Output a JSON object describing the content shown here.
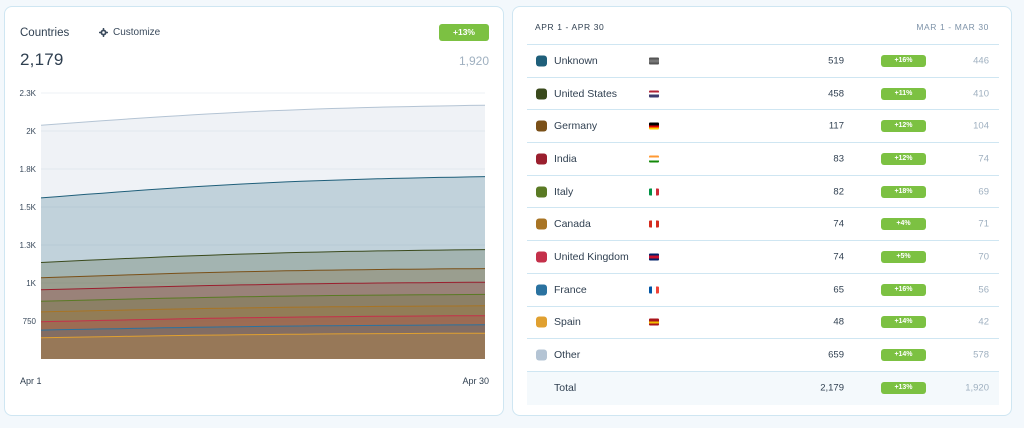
{
  "left_panel": {
    "title": "Countries",
    "customize_label": "Customize",
    "change_badge": "+13%",
    "current_total": "2,179",
    "previous_total": "1,920",
    "x_start_label": "Apr 1",
    "x_end_label": "Apr 30"
  },
  "right_panel": {
    "current_range": "APR 1 - APR 30",
    "previous_range": "MAR 1 - MAR 30"
  },
  "rows": [
    {
      "name": "Unknown",
      "value": "519",
      "change": "+16%",
      "previous": "446",
      "color": "#1f5f7a",
      "flag": "unknown"
    },
    {
      "name": "United States",
      "value": "458",
      "change": "+11%",
      "previous": "410",
      "color": "#3a4a1c",
      "flag": "us"
    },
    {
      "name": "Germany",
      "value": "117",
      "change": "+12%",
      "previous": "104",
      "color": "#7a5018",
      "flag": "de"
    },
    {
      "name": "India",
      "value": "83",
      "change": "+12%",
      "previous": "74",
      "color": "#9a1f2e",
      "flag": "in"
    },
    {
      "name": "Italy",
      "value": "82",
      "change": "+18%",
      "previous": "69",
      "color": "#5a7a24",
      "flag": "it"
    },
    {
      "name": "Canada",
      "value": "74",
      "change": "+4%",
      "previous": "71",
      "color": "#a87424",
      "flag": "ca"
    },
    {
      "name": "United Kingdom",
      "value": "74",
      "change": "+5%",
      "previous": "70",
      "color": "#c4304a",
      "flag": "gb"
    },
    {
      "name": "France",
      "value": "65",
      "change": "+16%",
      "previous": "56",
      "color": "#2a72a0",
      "flag": "fr"
    },
    {
      "name": "Spain",
      "value": "48",
      "change": "+14%",
      "previous": "42",
      "color": "#e0a030",
      "flag": "es"
    },
    {
      "name": "Other",
      "value": "659",
      "change": "+14%",
      "previous": "578",
      "color": "#b4c4d4",
      "flag": ""
    }
  ],
  "total_row": {
    "name": "Total",
    "value": "2,179",
    "change": "+13%",
    "previous": "1,920"
  },
  "chart_data": {
    "type": "area",
    "stacked": true,
    "y_ticks": [
      "750",
      "1K",
      "1.3K",
      "1.5K",
      "1.8K",
      "2K",
      "2.3K"
    ],
    "y_tick_values": [
      750,
      1000,
      1250,
      1500,
      1750,
      2000,
      2250
    ],
    "ylim": [
      500,
      2250
    ],
    "x_points": 30,
    "series": [
      {
        "name": "Other",
        "color": "#b4c4d4",
        "start": 2038,
        "end": 2170
      },
      {
        "name": "Unknown",
        "color": "#1f5f7a",
        "start": 1560,
        "end": 1700
      },
      {
        "name": "United States",
        "color": "#3a4a1c",
        "start": 1135,
        "end": 1220
      },
      {
        "name": "Germany",
        "color": "#7a5018",
        "start": 1035,
        "end": 1095
      },
      {
        "name": "India",
        "color": "#9a1f2e",
        "start": 955,
        "end": 1005
      },
      {
        "name": "Italy",
        "color": "#5a7a24",
        "start": 880,
        "end": 925
      },
      {
        "name": "Canada",
        "color": "#a87424",
        "start": 810,
        "end": 850
      },
      {
        "name": "United Kingdom",
        "color": "#c4304a",
        "start": 745,
        "end": 785
      },
      {
        "name": "France",
        "color": "#2a72a0",
        "start": 690,
        "end": 725
      },
      {
        "name": "Spain",
        "color": "#e0a030",
        "start": 640,
        "end": 670
      }
    ]
  }
}
